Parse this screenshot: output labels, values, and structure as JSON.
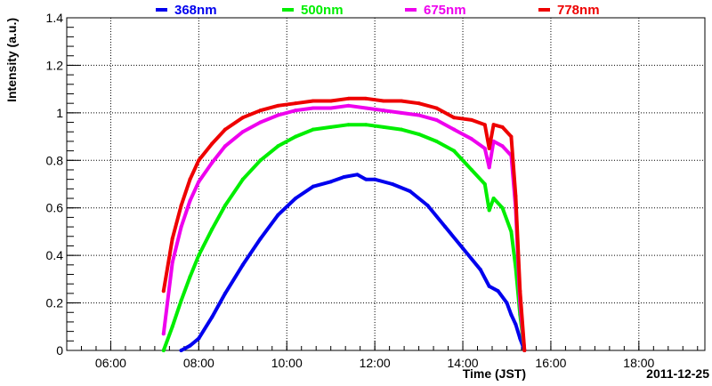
{
  "chart_data": {
    "type": "scatter",
    "xlabel": "Time (JST)",
    "ylabel": "Intensity (a.u.)",
    "date_label": "2011-12-25",
    "x_unit": "hours (JST)",
    "xlim": [
      5,
      19.5
    ],
    "ylim": [
      0,
      1.4
    ],
    "x_ticks": [
      6,
      8,
      10,
      12,
      14,
      16,
      18
    ],
    "x_tick_labels": [
      "06:00",
      "08:00",
      "10:00",
      "12:00",
      "14:00",
      "16:00",
      "18:00"
    ],
    "y_ticks": [
      0,
      0.2,
      0.4,
      0.6,
      0.8,
      1.0,
      1.2,
      1.4
    ],
    "y_tick_labels": [
      "0",
      "0.2",
      "0.4",
      "0.6",
      "0.8",
      "1",
      "1.2",
      "1.4"
    ],
    "grid": true,
    "legend_position": "top",
    "series": [
      {
        "name": "368nm",
        "color": "#0000ee",
        "x": [
          7.6,
          7.8,
          8.0,
          8.3,
          8.6,
          9.0,
          9.4,
          9.8,
          10.2,
          10.6,
          11.0,
          11.3,
          11.6,
          11.8,
          12.0,
          12.4,
          12.8,
          13.2,
          13.6,
          14.0,
          14.4,
          14.6,
          14.8,
          15.0,
          15.1,
          15.2,
          15.3,
          15.4
        ],
        "y": [
          0.0,
          0.02,
          0.05,
          0.14,
          0.24,
          0.36,
          0.47,
          0.57,
          0.64,
          0.69,
          0.71,
          0.73,
          0.74,
          0.72,
          0.72,
          0.7,
          0.67,
          0.61,
          0.52,
          0.43,
          0.34,
          0.27,
          0.25,
          0.2,
          0.15,
          0.11,
          0.05,
          0.0
        ]
      },
      {
        "name": "500nm",
        "color": "#00ee00",
        "x": [
          7.2,
          7.4,
          7.6,
          7.8,
          8.0,
          8.3,
          8.6,
          9.0,
          9.4,
          9.8,
          10.2,
          10.6,
          11.0,
          11.4,
          11.8,
          12.2,
          12.6,
          13.0,
          13.4,
          13.8,
          14.2,
          14.5,
          14.6,
          14.7,
          14.9,
          15.1,
          15.2,
          15.3,
          15.4
        ],
        "y": [
          0.0,
          0.1,
          0.21,
          0.31,
          0.4,
          0.51,
          0.61,
          0.72,
          0.8,
          0.86,
          0.9,
          0.93,
          0.94,
          0.95,
          0.95,
          0.94,
          0.93,
          0.91,
          0.88,
          0.84,
          0.76,
          0.7,
          0.59,
          0.64,
          0.6,
          0.5,
          0.35,
          0.15,
          0.0
        ]
      },
      {
        "name": "675nm",
        "color": "#ee00ee",
        "x": [
          7.2,
          7.4,
          7.6,
          7.8,
          8.0,
          8.3,
          8.6,
          9.0,
          9.4,
          9.8,
          10.2,
          10.6,
          11.0,
          11.4,
          11.8,
          12.2,
          12.6,
          13.0,
          13.4,
          13.8,
          14.2,
          14.5,
          14.6,
          14.7,
          14.9,
          15.1,
          15.2,
          15.3,
          15.4
        ],
        "y": [
          0.07,
          0.37,
          0.52,
          0.63,
          0.71,
          0.79,
          0.86,
          0.92,
          0.96,
          0.99,
          1.01,
          1.02,
          1.02,
          1.03,
          1.02,
          1.01,
          1.0,
          0.99,
          0.97,
          0.93,
          0.89,
          0.85,
          0.77,
          0.88,
          0.86,
          0.82,
          0.6,
          0.2,
          0.0
        ]
      },
      {
        "name": "778nm",
        "color": "#ee0000",
        "x": [
          7.2,
          7.4,
          7.6,
          7.8,
          8.0,
          8.3,
          8.6,
          9.0,
          9.4,
          9.8,
          10.2,
          10.6,
          11.0,
          11.4,
          11.8,
          12.2,
          12.6,
          13.0,
          13.4,
          13.8,
          14.2,
          14.5,
          14.6,
          14.7,
          14.9,
          15.1,
          15.2,
          15.3,
          15.4
        ],
        "y": [
          0.25,
          0.47,
          0.61,
          0.72,
          0.8,
          0.87,
          0.93,
          0.98,
          1.01,
          1.03,
          1.04,
          1.05,
          1.05,
          1.06,
          1.06,
          1.05,
          1.05,
          1.04,
          1.02,
          0.98,
          0.97,
          0.95,
          0.85,
          0.95,
          0.94,
          0.9,
          0.65,
          0.25,
          0.0
        ]
      }
    ]
  }
}
